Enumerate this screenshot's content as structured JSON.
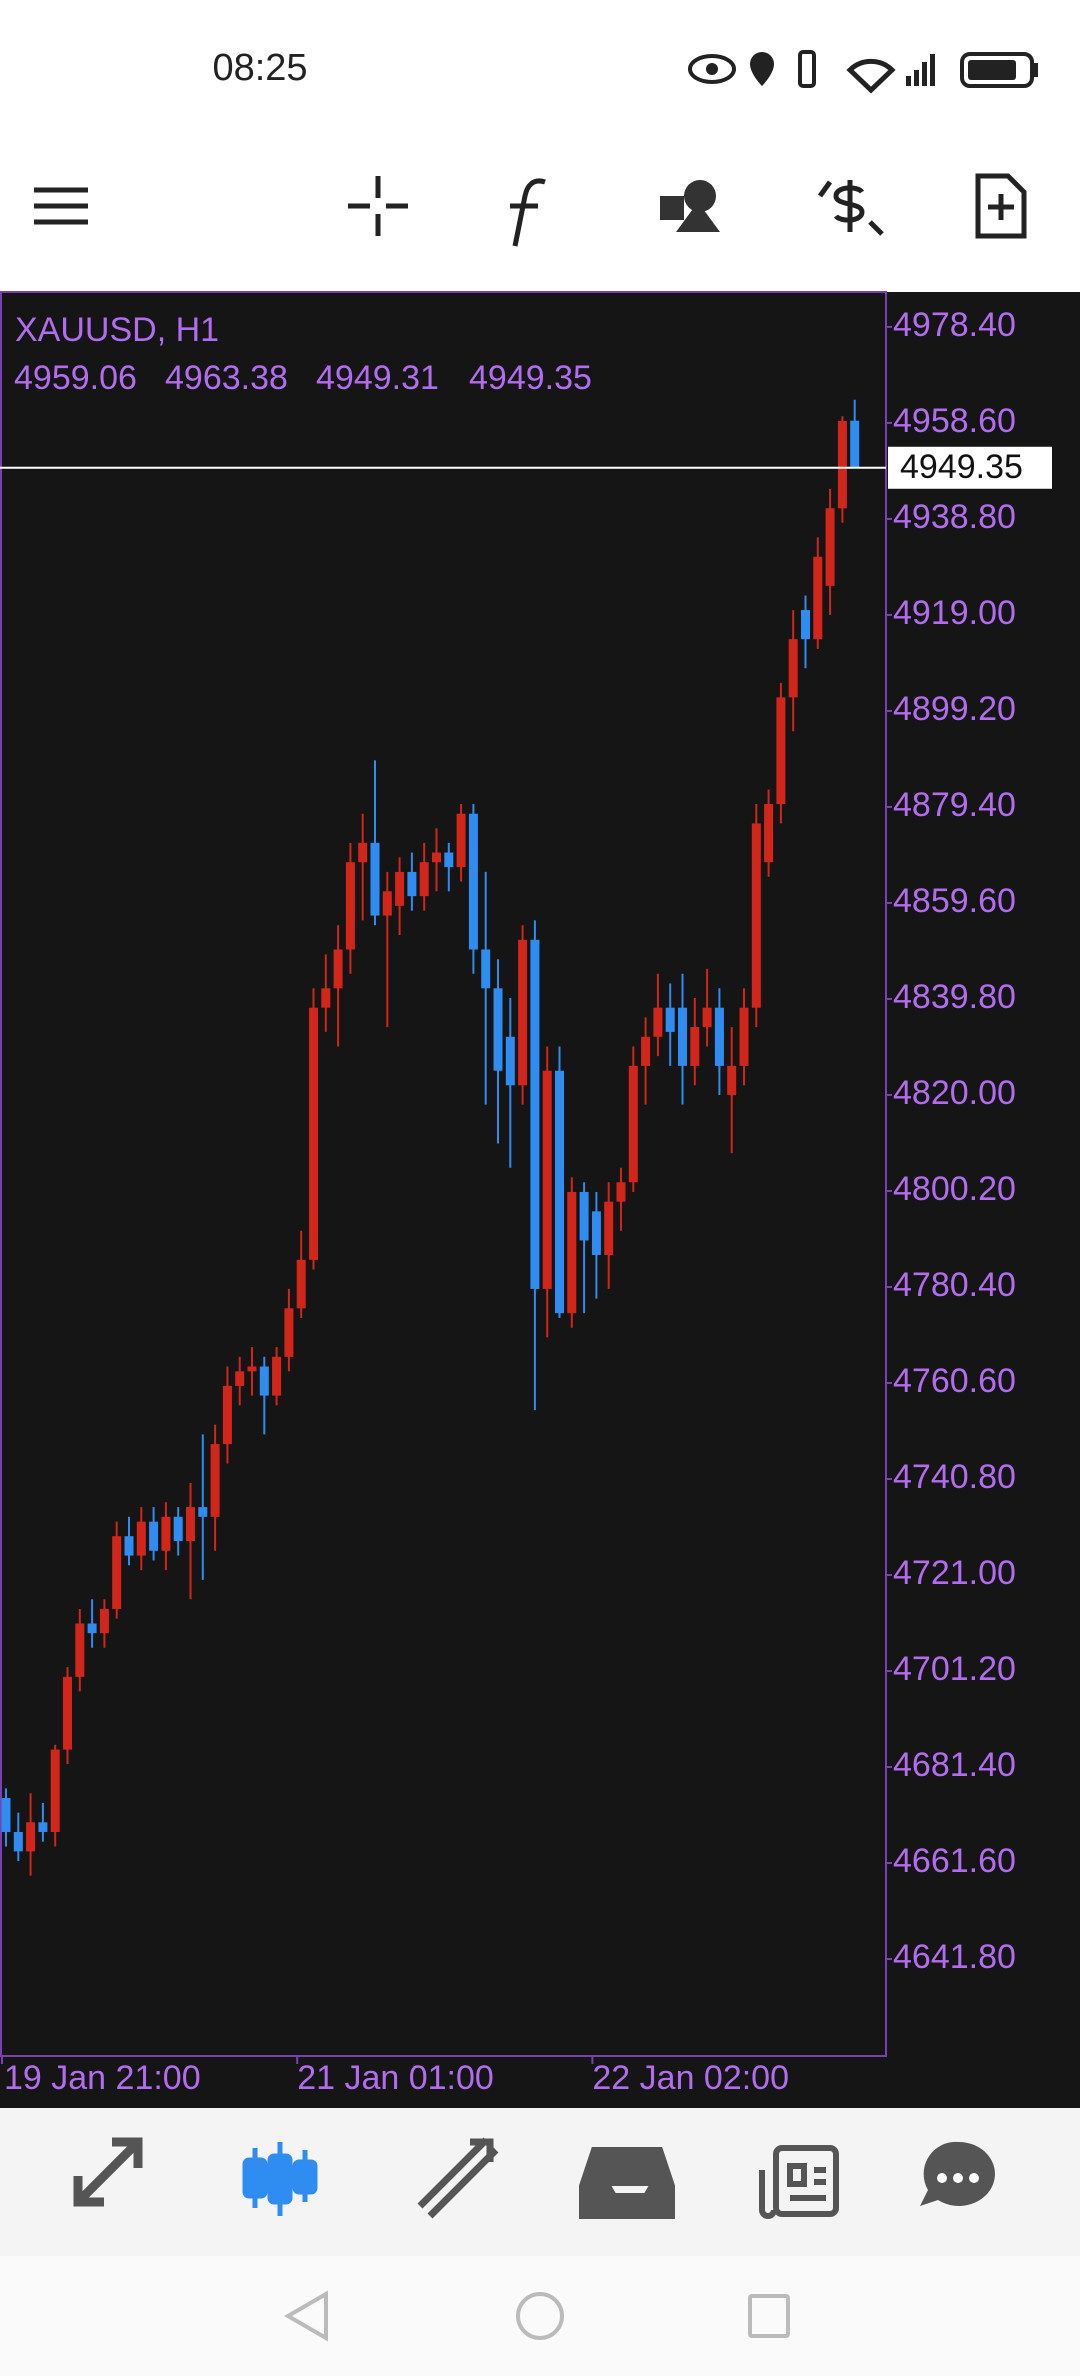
{
  "status_time": "08:25",
  "chart_data": {
    "type": "candlestick",
    "title": "XAUUSD, H1",
    "categories": [
      "19 Jan 21:00",
      null,
      null,
      null,
      null,
      null,
      null,
      null,
      null,
      null,
      null,
      null,
      null,
      null,
      null,
      null,
      null,
      null,
      null,
      null,
      null,
      null,
      null,
      null,
      "21 Jan 01:00",
      null,
      null,
      null,
      null,
      null,
      null,
      null,
      null,
      null,
      null,
      null,
      null,
      null,
      null,
      null,
      null,
      null,
      null,
      null,
      null,
      null,
      null,
      null,
      "22 Jan 02:00",
      null,
      null,
      null,
      null,
      null,
      null,
      null,
      null,
      null,
      null,
      null,
      null,
      null,
      null,
      null,
      null,
      null,
      null,
      null,
      null,
      null
    ],
    "open": [
      4675,
      4668,
      4664,
      4670,
      4668,
      4685,
      4700,
      4711,
      4709,
      4714,
      4729,
      4725,
      4732,
      4726,
      4733,
      4728,
      4735,
      4733,
      4748,
      4760,
      4763,
      4764,
      4758,
      4766,
      4776,
      4786,
      4838,
      4842,
      4850,
      4868,
      4872,
      4857,
      4859,
      4866,
      4861,
      4868,
      4870,
      4867,
      4878,
      4850,
      4842,
      4832,
      4822,
      4852,
      4780,
      4825,
      4775,
      4800,
      4796,
      4787,
      4798,
      4802,
      4826,
      4832,
      4838,
      4838,
      4826,
      4834,
      4838,
      4820,
      4826,
      4838,
      4868,
      4880,
      4902,
      4920,
      4914,
      4925,
      4941,
      4959.06
    ],
    "high": [
      4677,
      4672,
      4676,
      4674,
      4686,
      4702,
      4714,
      4716,
      4716,
      4732,
      4733,
      4735,
      4735,
      4736,
      4735,
      4740,
      4750,
      4752,
      4764,
      4766,
      4768,
      4766,
      4768,
      4780,
      4792,
      4842,
      4849,
      4855,
      4872,
      4878,
      4889,
      4866,
      4869,
      4870,
      4872,
      4875,
      4872,
      4880,
      4880,
      4866,
      4848,
      4840,
      4855,
      4856,
      4830,
      4830,
      4803,
      4802,
      4800,
      4802,
      4805,
      4830,
      4836,
      4845,
      4843,
      4845,
      4840,
      4846,
      4842,
      4834,
      4842,
      4880,
      4883,
      4905,
      4920,
      4923,
      4935,
      4945,
      4960,
      4963.38
    ],
    "low": [
      4665,
      4662,
      4659,
      4666,
      4665,
      4682,
      4697,
      4706,
      4706,
      4712,
      4723,
      4722,
      4724,
      4722,
      4725,
      4716,
      4720,
      4726,
      4744,
      4756,
      4758,
      4750,
      4756,
      4763,
      4774,
      4784,
      4833,
      4830,
      4845,
      4856,
      4855,
      4834,
      4853,
      4858,
      4858,
      4862,
      4862,
      4864,
      4845,
      4818,
      4810,
      4805,
      4818,
      4755,
      4770,
      4774,
      4772,
      4775,
      4778,
      4780,
      4792,
      4800,
      4818,
      4828,
      4826,
      4818,
      4822,
      4830,
      4820,
      4808,
      4822,
      4834,
      4865,
      4876,
      4895,
      4908,
      4912,
      4919,
      4938,
      4949.31
    ],
    "close": [
      4668,
      4664,
      4670,
      4668,
      4685,
      4700,
      4711,
      4709,
      4714,
      4729,
      4725,
      4732,
      4726,
      4733,
      4728,
      4735,
      4733,
      4748,
      4760,
      4763,
      4764,
      4758,
      4766,
      4776,
      4786,
      4838,
      4842,
      4850,
      4868,
      4872,
      4857,
      4862,
      4866,
      4861,
      4868,
      4870,
      4867,
      4878,
      4850,
      4842,
      4825,
      4822,
      4852,
      4780,
      4825,
      4775,
      4800,
      4790,
      4787,
      4798,
      4802,
      4826,
      4832,
      4838,
      4833,
      4826,
      4834,
      4838,
      4826,
      4826,
      4838,
      4876,
      4880,
      4902,
      4914,
      4914,
      4931,
      4941,
      4959,
      4949.35
    ],
    "up_color": "#d3261b",
    "down_color": "#2f8cf0",
    "ylim": [
      4621.8,
      4985.6
    ],
    "yticks": [
      {
        "value": 4978.4,
        "label": "4978.40"
      },
      {
        "value": 4958.6,
        "label": "4958.60"
      },
      {
        "value": 4938.8,
        "label": "4938.80"
      },
      {
        "value": 4919,
        "label": "4919.00"
      },
      {
        "value": 4899.2,
        "label": "4899.20"
      },
      {
        "value": 4879.4,
        "label": "4879.40"
      },
      {
        "value": 4859.6,
        "label": "4859.60"
      },
      {
        "value": 4839.8,
        "label": "4839.80"
      },
      {
        "value": 4820,
        "label": "4820.00"
      },
      {
        "value": 4800.2,
        "label": "4800.20"
      },
      {
        "value": 4780.4,
        "label": "4780.40"
      },
      {
        "value": 4760.6,
        "label": "4760.60"
      },
      {
        "value": 4740.8,
        "label": "4740.80"
      },
      {
        "value": 4721,
        "label": "4721.00"
      },
      {
        "value": 4701.2,
        "label": "4701.20"
      },
      {
        "value": 4681.4,
        "label": "4681.40"
      },
      {
        "value": 4661.6,
        "label": "4661.60"
      },
      {
        "value": 4641.8,
        "label": "4641.80"
      }
    ],
    "grid": false
  }
}
